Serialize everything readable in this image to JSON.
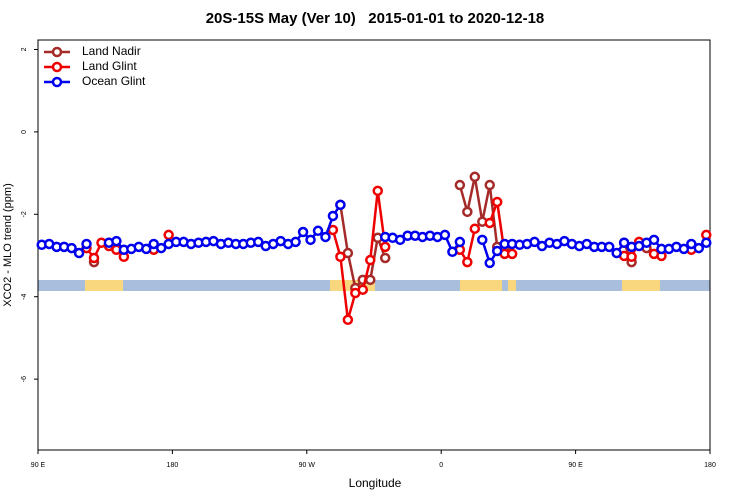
{
  "chart_data": {
    "type": "line",
    "title": "20S-15S May (Ver 10)   2015-01-01 to 2020-12-18",
    "x_label": "Longitude",
    "y_label": "XCO2 - MLO trend (ppm)",
    "xlim": [
      90,
      540
    ],
    "ylim": [
      -7.72,
      2.23
    ],
    "xticks": [
      {
        "value": 90,
        "label": "90 E"
      },
      180,
      {
        "value": 270,
        "label": "90 W"
      },
      {
        "value": 360,
        "label": "0"
      },
      {
        "value": 450,
        "label": "90 E"
      },
      {
        "value": 540,
        "label": "180"
      }
    ],
    "yticks": [
      -6,
      -4,
      -2,
      0,
      2
    ],
    "legend": "top-left",
    "x": [
      92.5,
      97.5,
      102.5,
      107.5,
      112.5,
      117.5,
      122.5,
      127.5,
      132.5,
      137.5,
      142.5,
      147.5,
      152.5,
      157.5,
      162.5,
      167.5,
      172.5,
      177.5,
      182.5,
      187.5,
      192.5,
      197.5,
      202.5,
      207.5,
      212.5,
      217.5,
      222.5,
      227.5,
      232.5,
      237.5,
      242.5,
      247.5,
      252.5,
      257.5,
      262.5,
      267.5,
      272.5,
      277.5,
      282.5,
      287.5,
      292.5,
      297.5,
      302.5,
      307.5,
      312.5,
      317.5,
      322.5,
      327.5,
      332.5,
      337.5,
      342.5,
      347.5,
      352.5,
      357.5,
      362.5,
      367.5,
      372.5,
      377.5,
      382.5,
      387.5,
      392.5,
      397.5,
      402.5,
      407.5,
      412.5,
      417.5,
      422.5,
      427.5,
      432.5,
      437.5,
      442.5,
      447.5,
      452.5,
      457.5,
      462.5,
      467.5,
      472.5,
      477.5,
      482.5,
      487.5,
      492.5,
      497.5,
      502.5,
      507.5,
      512.5,
      517.5,
      522.5,
      527.5,
      532.5,
      537.5
    ],
    "series": [
      {
        "name": "Land Nadir",
        "color": "#a52a2a",
        "values": [
          null,
          null,
          null,
          null,
          null,
          null,
          null,
          -3.16,
          null,
          -2.69,
          null,
          null,
          null,
          null,
          null,
          null,
          null,
          null,
          null,
          null,
          null,
          null,
          null,
          null,
          null,
          null,
          null,
          null,
          null,
          null,
          null,
          null,
          null,
          null,
          null,
          null,
          null,
          null,
          null,
          null,
          -1.77,
          -2.94,
          -3.79,
          -3.59,
          -3.59,
          -2.57,
          -3.06,
          null,
          null,
          null,
          null,
          null,
          null,
          null,
          null,
          null,
          -1.29,
          -1.94,
          -1.09,
          -2.18,
          -1.29,
          -2.79,
          -2.82,
          null,
          null,
          null,
          null,
          null,
          null,
          null,
          null,
          null,
          null,
          null,
          null,
          null,
          null,
          null,
          -2.69,
          -3.16,
          null,
          -2.82,
          null,
          null,
          null,
          null,
          null,
          null,
          null,
          null
        ]
      },
      {
        "name": "Land Glint",
        "color": "#ee0000",
        "values": [
          null,
          null,
          null,
          null,
          null,
          null,
          -2.82,
          -3.06,
          -2.69,
          -2.77,
          -2.86,
          -3.03,
          null,
          null,
          null,
          -2.86,
          null,
          -2.5,
          null,
          null,
          null,
          null,
          null,
          null,
          null,
          null,
          null,
          null,
          null,
          null,
          null,
          null,
          null,
          null,
          null,
          null,
          null,
          null,
          null,
          -2.38,
          -3.03,
          -4.56,
          -3.91,
          -3.83,
          -3.11,
          -1.43,
          -2.79,
          null,
          null,
          null,
          null,
          null,
          null,
          null,
          null,
          null,
          -2.86,
          -3.16,
          -2.35,
          null,
          -2.21,
          -1.7,
          -2.96,
          -2.96,
          null,
          null,
          null,
          null,
          null,
          null,
          null,
          null,
          null,
          null,
          null,
          null,
          null,
          null,
          -3.01,
          -3.03,
          -2.67,
          null,
          -2.96,
          -3.01,
          null,
          null,
          null,
          -2.86,
          null,
          -2.5
        ]
      },
      {
        "name": "Ocean Glint",
        "color": "#0000ee",
        "values": [
          -2.74,
          -2.72,
          -2.79,
          -2.79,
          -2.82,
          -2.94,
          -2.72,
          null,
          null,
          -2.69,
          -2.65,
          -2.86,
          -2.84,
          -2.79,
          -2.84,
          -2.72,
          -2.82,
          -2.72,
          -2.67,
          -2.67,
          -2.72,
          -2.69,
          -2.67,
          -2.65,
          -2.72,
          -2.69,
          -2.72,
          -2.72,
          -2.69,
          -2.67,
          -2.77,
          -2.72,
          -2.65,
          -2.72,
          -2.67,
          -2.43,
          -2.62,
          -2.4,
          -2.55,
          -2.04,
          -1.77,
          null,
          null,
          null,
          null,
          null,
          -2.55,
          -2.57,
          -2.62,
          -2.52,
          -2.52,
          -2.55,
          -2.52,
          -2.55,
          -2.5,
          -2.91,
          -2.67,
          null,
          null,
          -2.62,
          -3.18,
          -2.89,
          -2.72,
          -2.72,
          -2.74,
          -2.72,
          -2.67,
          -2.77,
          -2.69,
          -2.72,
          -2.65,
          -2.72,
          -2.77,
          -2.72,
          -2.79,
          -2.79,
          -2.79,
          -2.94,
          -2.69,
          -2.79,
          -2.77,
          -2.69,
          -2.62,
          -2.84,
          -2.84,
          -2.79,
          -2.84,
          -2.72,
          -2.82,
          -2.69
        ]
      }
    ]
  }
}
